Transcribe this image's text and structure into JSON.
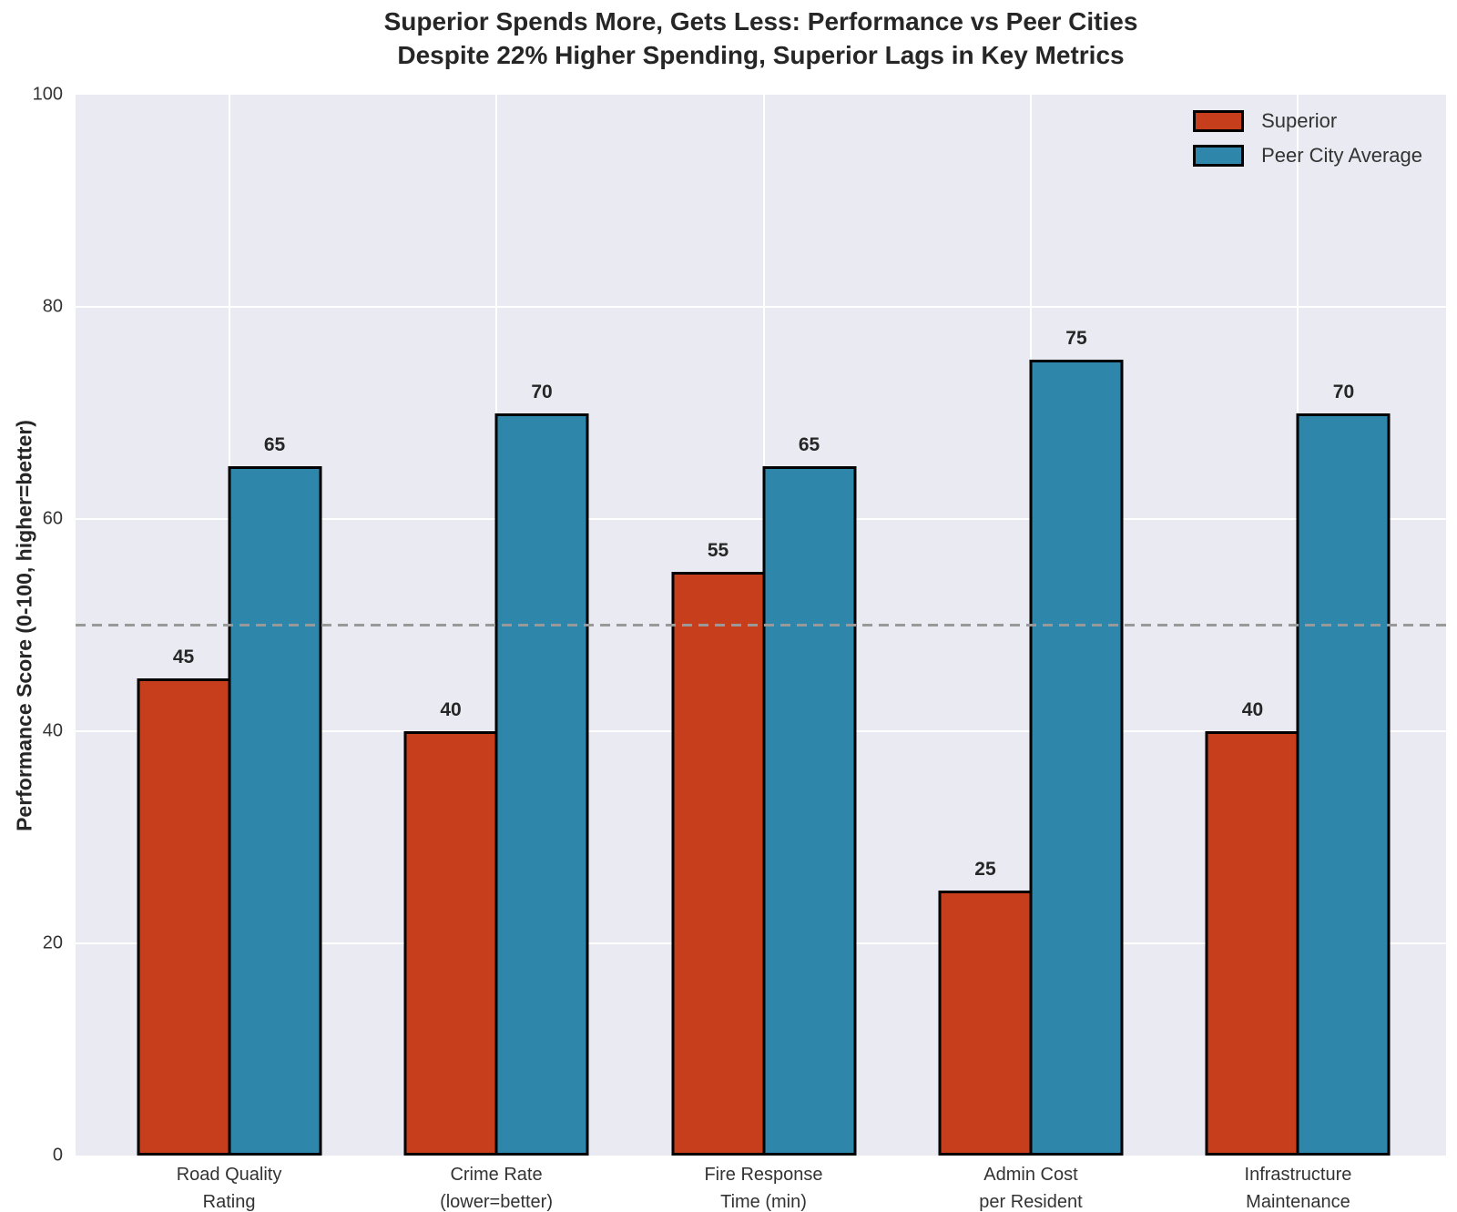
{
  "title": {
    "line1": "Superior Spends More, Gets Less: Performance vs Peer Cities",
    "line2": "Despite 22% Higher Spending, Superior Lags in Key Metrics"
  },
  "chart_data": {
    "type": "bar",
    "categories": [
      "Road Quality\nRating",
      "Crime Rate\n(lower=better)",
      "Fire Response\nTime (min)",
      "Admin Cost\nper Resident",
      "Infrastructure\nMaintenance"
    ],
    "series": [
      {
        "name": "Superior",
        "color": "#c73e1d",
        "values": [
          45,
          40,
          55,
          25,
          40
        ]
      },
      {
        "name": "Peer City Average",
        "color": "#2e86ab",
        "values": [
          65,
          70,
          65,
          75,
          70
        ]
      }
    ],
    "ylabel": "Performance Score (0-100, higher=better)",
    "ylim": [
      0,
      100
    ],
    "yticks": [
      0,
      20,
      40,
      60,
      80,
      100
    ],
    "reference_line": 50,
    "grid": true,
    "legend_position": "upper right",
    "colors": {
      "plot_background": "#eaeaf2",
      "grid": "#ffffff",
      "reference_line": "#999999",
      "bar_edge": "#000000",
      "text": "#262626"
    }
  }
}
